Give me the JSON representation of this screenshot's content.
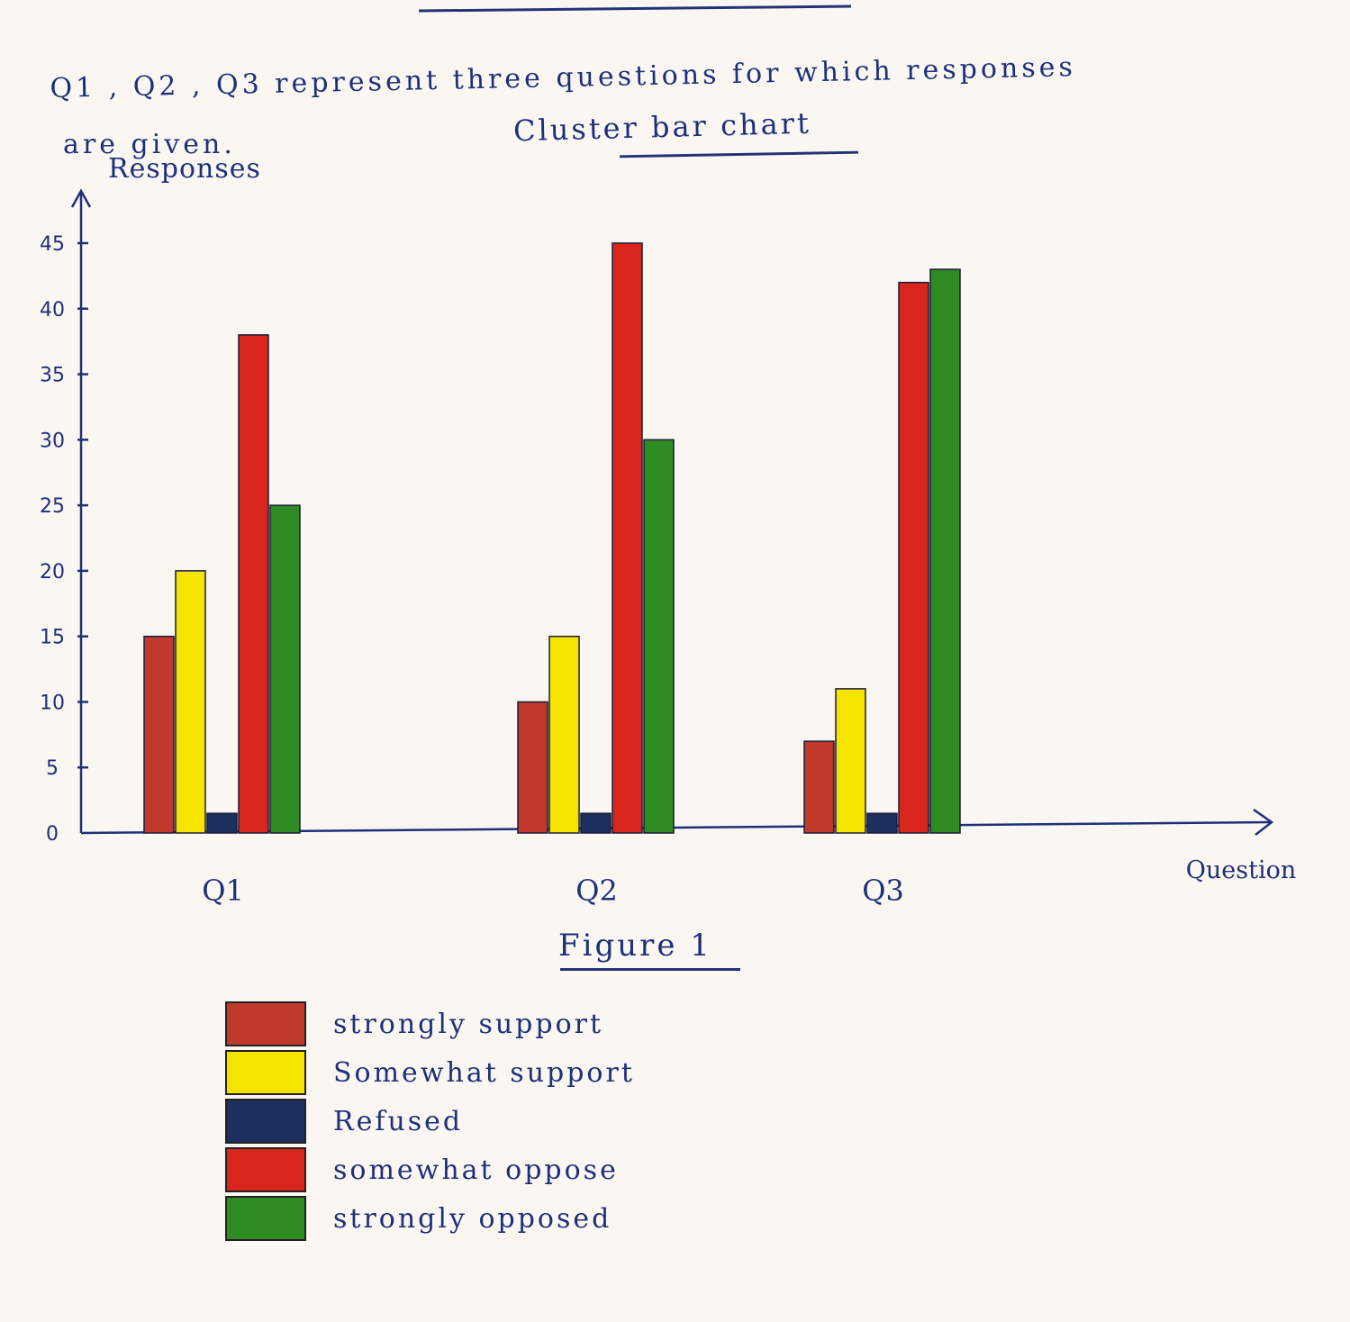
{
  "intro": {
    "line1": "Q1 , Q2 , Q3  represent  three  questions  for  which  responses",
    "line2": "are given."
  },
  "chart_title": "Cluster bar chart",
  "figure_caption": "Figure 1",
  "chart_data": {
    "type": "bar",
    "title": "Cluster bar chart",
    "xlabel": "Question",
    "ylabel": "Responses",
    "ylim": [
      0,
      45
    ],
    "yticks": [
      0,
      5,
      10,
      15,
      20,
      25,
      30,
      35,
      40,
      45
    ],
    "categories": [
      "Q1",
      "Q2",
      "Q3"
    ],
    "series": [
      {
        "name": "strongly support",
        "color": "#c0392b",
        "values": [
          15,
          10,
          7
        ]
      },
      {
        "name": "Somewhat support",
        "color": "#f5e400",
        "values": [
          20,
          15,
          11
        ]
      },
      {
        "name": "Refused",
        "color": "#1d2f5e",
        "values": [
          1.5,
          1.5,
          1.5
        ]
      },
      {
        "name": "somewhat oppose",
        "color": "#d9261c",
        "values": [
          38,
          45,
          42
        ]
      },
      {
        "name": "strongly opposed",
        "color": "#2e8b22",
        "values": [
          25,
          30,
          43
        ]
      }
    ],
    "grid": false,
    "legend_position": "bottom-left"
  }
}
